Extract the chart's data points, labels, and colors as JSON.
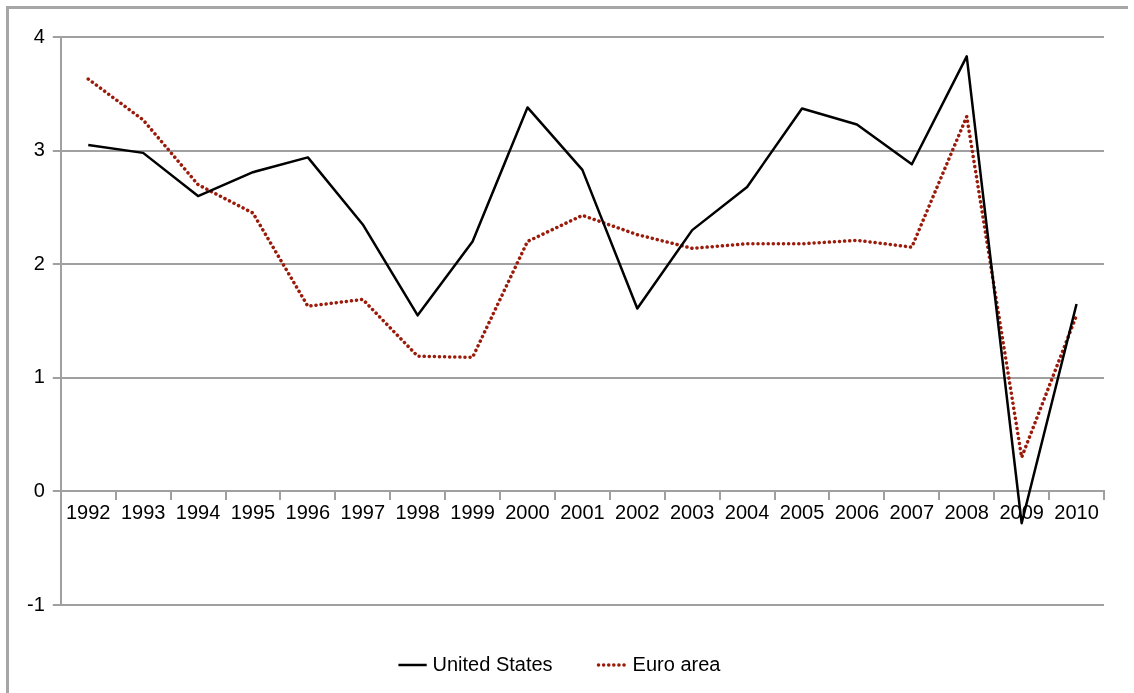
{
  "chart_data": {
    "type": "line",
    "categories": [
      "1992",
      "1993",
      "1994",
      "1995",
      "1996",
      "1997",
      "1998",
      "1999",
      "2000",
      "2001",
      "2002",
      "2003",
      "2004",
      "2005",
      "2006",
      "2007",
      "2008",
      "2009",
      "2010"
    ],
    "series": [
      {
        "name": "United States",
        "color": "#000000",
        "line_style": "solid",
        "values": [
          3.05,
          2.98,
          2.6,
          2.81,
          2.94,
          2.35,
          1.55,
          2.2,
          3.38,
          2.83,
          1.61,
          2.3,
          2.68,
          3.37,
          3.23,
          2.88,
          3.83,
          -0.28,
          1.65
        ]
      },
      {
        "name": "Euro area",
        "color": "#9b1b0b",
        "line_style": "dotted",
        "values": [
          3.63,
          3.27,
          2.7,
          2.45,
          1.63,
          1.69,
          1.19,
          1.18,
          2.2,
          2.43,
          2.26,
          2.14,
          2.18,
          2.18,
          2.21,
          2.15,
          3.3,
          0.3,
          1.55
        ]
      }
    ],
    "ylim": [
      -1,
      4
    ],
    "yticks": [
      -1,
      0,
      1,
      2,
      3,
      4
    ],
    "grid": "y",
    "legend": "bottom",
    "marker": "none"
  }
}
